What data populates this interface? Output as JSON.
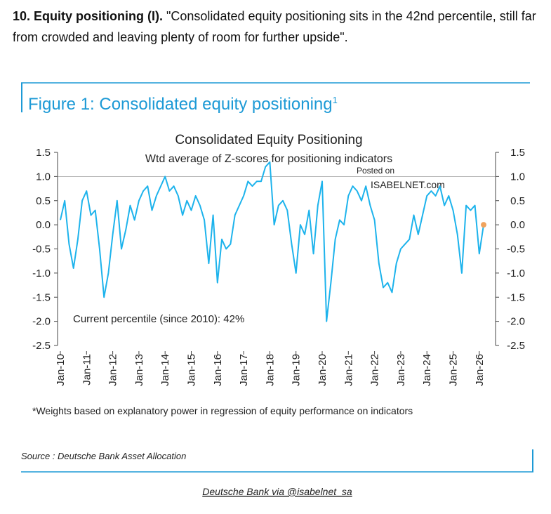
{
  "header": {
    "lead": "10. Equity positioning (I).",
    "text": "\"Consolidated equity positioning sits in the 42nd percentile, still far from crowded and leaving plenty of room for further upside\"."
  },
  "figure": {
    "title": "Figure 1: Consolidated equity positioning",
    "title_sup": "1",
    "footnote": "*Weights based on explanatory power in regression of equity performance on indicators",
    "source": "Source : Deutsche Bank Asset Allocation",
    "watermark": [
      "Posted on",
      "ISABELNET.com"
    ]
  },
  "credit": "Deutsche Bank via @isabelnet_sa",
  "chart_data": {
    "type": "line",
    "title": "Consolidated Equity Positioning",
    "subtitle": "Wtd average of Z-scores for positioning indicators",
    "annotation": "Current percentile (since 2010): 42%",
    "x": [
      "2010-01",
      "2010-03",
      "2010-05",
      "2010-07",
      "2010-09",
      "2010-11",
      "2011-01",
      "2011-03",
      "2011-05",
      "2011-07",
      "2011-09",
      "2011-11",
      "2012-01",
      "2012-03",
      "2012-05",
      "2012-07",
      "2012-09",
      "2012-11",
      "2013-01",
      "2013-03",
      "2013-05",
      "2013-07",
      "2013-09",
      "2013-11",
      "2014-01",
      "2014-03",
      "2014-05",
      "2014-07",
      "2014-09",
      "2014-11",
      "2015-01",
      "2015-03",
      "2015-05",
      "2015-07",
      "2015-09",
      "2015-11",
      "2016-01",
      "2016-03",
      "2016-05",
      "2016-07",
      "2016-09",
      "2016-11",
      "2017-01",
      "2017-03",
      "2017-05",
      "2017-07",
      "2017-09",
      "2017-11",
      "2018-01",
      "2018-03",
      "2018-05",
      "2018-07",
      "2018-09",
      "2018-11",
      "2019-01",
      "2019-03",
      "2019-05",
      "2019-07",
      "2019-09",
      "2019-11",
      "2020-01",
      "2020-03",
      "2020-05",
      "2020-07",
      "2020-09",
      "2020-11",
      "2021-01",
      "2021-03",
      "2021-05",
      "2021-07",
      "2021-09",
      "2021-11",
      "2022-01",
      "2022-03",
      "2022-05",
      "2022-07",
      "2022-09",
      "2022-11",
      "2023-01",
      "2023-03",
      "2023-05",
      "2023-07",
      "2023-09",
      "2023-11",
      "2024-01",
      "2024-03",
      "2024-05",
      "2024-07",
      "2024-09",
      "2024-11",
      "2025-01",
      "2025-03",
      "2025-05",
      "2025-07",
      "2025-09",
      "2025-11",
      "2026-01",
      "2026-03"
    ],
    "series": [
      {
        "name": "Consolidated equity positioning",
        "color": "#1db3ec",
        "values": [
          0.1,
          0.5,
          -0.4,
          -0.9,
          -0.3,
          0.5,
          0.7,
          0.2,
          0.3,
          -0.5,
          -1.5,
          -1.0,
          -0.2,
          0.5,
          -0.5,
          -0.1,
          0.4,
          0.1,
          0.5,
          0.7,
          0.8,
          0.3,
          0.6,
          0.8,
          1.0,
          0.7,
          0.8,
          0.6,
          0.2,
          0.5,
          0.3,
          0.6,
          0.4,
          0.1,
          -0.8,
          0.2,
          -1.2,
          -0.3,
          -0.5,
          -0.4,
          0.2,
          0.4,
          0.6,
          0.9,
          0.8,
          0.9,
          0.9,
          1.2,
          1.3,
          0.0,
          0.4,
          0.5,
          0.3,
          -0.4,
          -1.0,
          0.0,
          -0.2,
          0.3,
          -0.6,
          0.4,
          0.9,
          -2.0,
          -1.2,
          -0.3,
          0.1,
          0.0,
          0.6,
          0.8,
          0.7,
          0.5,
          0.8,
          0.4,
          0.1,
          -0.8,
          -1.3,
          -1.2,
          -1.4,
          -0.8,
          -0.5,
          -0.4,
          -0.3,
          0.2,
          -0.2,
          0.2,
          0.6,
          0.7,
          0.6,
          0.8,
          0.4,
          0.6,
          0.3,
          -0.2,
          -1.0,
          0.4,
          0.3,
          0.4,
          -0.6,
          0.0
        ]
      }
    ],
    "last_point_color": "#f0a35e",
    "ylim": [
      -2.5,
      1.5
    ],
    "yticks": [
      -2.5,
      {
        "value": -2,
        "label": "-2.0"
      },
      -1.5,
      {
        "value": -1,
        "label": "-1.0"
      },
      -0.5,
      {
        "value": 0,
        "label": "0.0"
      },
      0.5,
      {
        "value": 1,
        "label": "1.0"
      },
      1.5
    ],
    "xlim": [
      "2010-01",
      "2026-05"
    ],
    "xticks": [
      {
        "value": "2010-01",
        "label": "Jan-10"
      },
      {
        "value": "2011-01",
        "label": "Jan-11"
      },
      {
        "value": "2012-01",
        "label": "Jan-12"
      },
      {
        "value": "2013-01",
        "label": "Jan-13"
      },
      {
        "value": "2014-01",
        "label": "Jan-14"
      },
      {
        "value": "2015-01",
        "label": "Jan-15"
      },
      {
        "value": "2016-01",
        "label": "Jan-16"
      },
      {
        "value": "2017-01",
        "label": "Jan-17"
      },
      {
        "value": "2018-01",
        "label": "Jan-18"
      },
      {
        "value": "2019-01",
        "label": "Jan-19"
      },
      {
        "value": "2020-01",
        "label": "Jan-20"
      },
      {
        "value": "2021-01",
        "label": "Jan-21"
      },
      {
        "value": "2022-01",
        "label": "Jan-22"
      },
      {
        "value": "2023-01",
        "label": "Jan-23"
      },
      {
        "value": "2024-01",
        "label": "Jan-24"
      },
      {
        "value": "2025-01",
        "label": "Jan-25"
      },
      {
        "value": "2026-01",
        "label": "Jan-26"
      }
    ],
    "gridlines": [
      {
        "value": 1,
        "label": "1.0"
      }
    ]
  }
}
